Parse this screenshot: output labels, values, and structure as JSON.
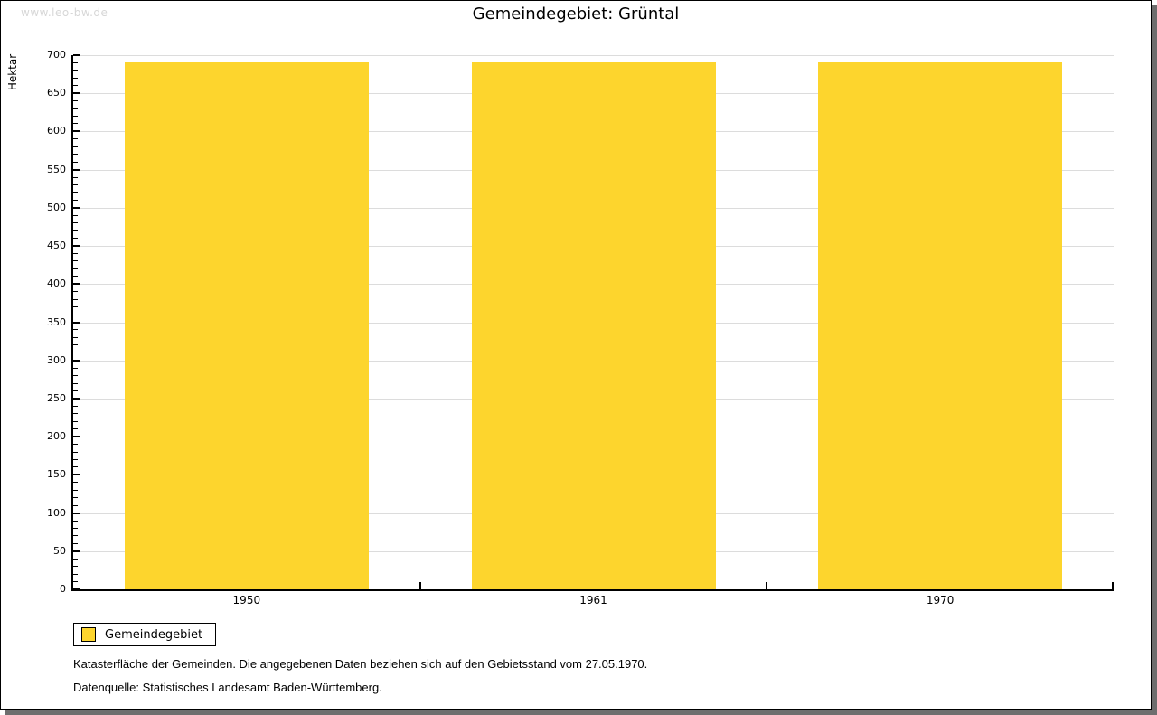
{
  "watermark": "www.leo-bw.de",
  "chart_data": {
    "type": "bar",
    "title": "Gemeindegebiet: Grüntal",
    "categories": [
      "1950",
      "1961",
      "1970"
    ],
    "series": [
      {
        "name": "Gemeindegebiet",
        "color": "#fdd52d",
        "values": [
          690,
          690,
          690
        ]
      }
    ],
    "xlabel": "",
    "ylabel": "Hektar",
    "ylim": [
      0,
      700
    ],
    "y_major_step": 50,
    "y_minor_step": 10,
    "grid": true,
    "legend_position": "bottom-left"
  },
  "legend": {
    "items": [
      {
        "label": "Gemeindegebiet",
        "color": "#fdd52d"
      }
    ]
  },
  "footnotes": [
    "Katasterfläche der Gemeinden. Die angegebenen Daten beziehen sich auf den Gebietsstand vom 27.05.1970.",
    "Datenquelle: Statistisches Landesamt Baden-Württemberg."
  ],
  "colors": {
    "bar": "#fdd52d",
    "grid": "#dcdcdc",
    "axis": "#000000",
    "watermark": "#d7d7d7",
    "shadow": "#6e6e6e"
  }
}
